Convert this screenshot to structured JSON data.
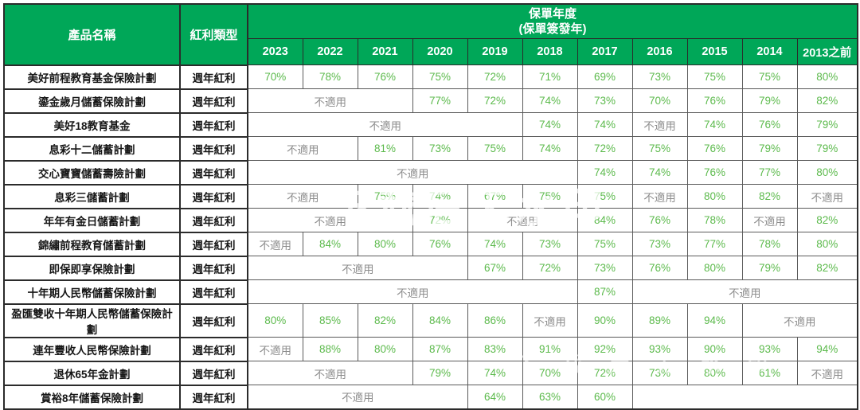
{
  "watermark": {
    "text": "下载后无水印"
  },
  "colors": {
    "header_bg": "#00a758",
    "header_text": "#ffffff",
    "ratio_green": "#5cba4c",
    "na_gray": "#8d8d8d",
    "body_text": "#161616",
    "grid_line": "#5a5a5a",
    "outer_border": "#2b2b2b"
  },
  "chart_data": {
    "type": "table",
    "title": "",
    "header": {
      "product": "產品名稱",
      "dividend_type": "紅利類型",
      "policy_year_line1": "保單年度",
      "policy_year_line2": "(保單簽發年)"
    },
    "years": [
      "2023",
      "2022",
      "2021",
      "2020",
      "2019",
      "2018",
      "2017",
      "2016",
      "2015",
      "2014",
      "2013之前"
    ],
    "na_label": "不適用",
    "rows": [
      {
        "product": "美好前程教育基金保險計劃",
        "dividend_type": "週年紅利",
        "cells": [
          {
            "v": "70%",
            "s": 1
          },
          {
            "v": "78%",
            "s": 1
          },
          {
            "v": "76%",
            "s": 1
          },
          {
            "v": "75%",
            "s": 1
          },
          {
            "v": "72%",
            "s": 1
          },
          {
            "v": "71%",
            "s": 1
          },
          {
            "v": "69%",
            "s": 1
          },
          {
            "v": "73%",
            "s": 1
          },
          {
            "v": "75%",
            "s": 1
          },
          {
            "v": "75%",
            "s": 1
          },
          {
            "v": "80%",
            "s": 1
          }
        ]
      },
      {
        "product": "鎏金歲月儲蓄保險計劃",
        "dividend_type": "週年紅利",
        "cells": [
          {
            "v": "不適用",
            "s": 3
          },
          {
            "v": "77%",
            "s": 1
          },
          {
            "v": "72%",
            "s": 1
          },
          {
            "v": "74%",
            "s": 1
          },
          {
            "v": "73%",
            "s": 1
          },
          {
            "v": "70%",
            "s": 1
          },
          {
            "v": "76%",
            "s": 1
          },
          {
            "v": "79%",
            "s": 1
          },
          {
            "v": "82%",
            "s": 1
          }
        ]
      },
      {
        "product": "美好18教育基金",
        "dividend_type": "週年紅利",
        "cells": [
          {
            "v": "不適用",
            "s": 5
          },
          {
            "v": "74%",
            "s": 1
          },
          {
            "v": "74%",
            "s": 1
          },
          {
            "v": "不適用",
            "s": 1
          },
          {
            "v": "74%",
            "s": 1
          },
          {
            "v": "76%",
            "s": 1
          },
          {
            "v": "79%",
            "s": 1
          }
        ]
      },
      {
        "product": "息彩十二儲蓄計劃",
        "dividend_type": "週年紅利",
        "cells": [
          {
            "v": "不適用",
            "s": 2
          },
          {
            "v": "81%",
            "s": 1
          },
          {
            "v": "73%",
            "s": 1
          },
          {
            "v": "75%",
            "s": 1
          },
          {
            "v": "74%",
            "s": 1
          },
          {
            "v": "72%",
            "s": 1
          },
          {
            "v": "75%",
            "s": 1
          },
          {
            "v": "76%",
            "s": 1
          },
          {
            "v": "79%",
            "s": 1
          },
          {
            "v": "79%",
            "s": 1
          }
        ]
      },
      {
        "product": "交心寶寶儲蓄壽險計劃",
        "dividend_type": "週年紅利",
        "cells": [
          {
            "v": "不適用",
            "s": 6
          },
          {
            "v": "74%",
            "s": 1
          },
          {
            "v": "74%",
            "s": 1
          },
          {
            "v": "76%",
            "s": 1
          },
          {
            "v": "77%",
            "s": 1
          },
          {
            "v": "80%",
            "s": 1
          }
        ]
      },
      {
        "product": "息彩三儲蓄計劃",
        "dividend_type": "週年紅利",
        "cells": [
          {
            "v": "不適用",
            "s": 2
          },
          {
            "v": "75%",
            "s": 1
          },
          {
            "v": "74%",
            "s": 1
          },
          {
            "v": "67%",
            "s": 1
          },
          {
            "v": "75%",
            "s": 1
          },
          {
            "v": "75%",
            "s": 1
          },
          {
            "v": "不適用",
            "s": 1
          },
          {
            "v": "80%",
            "s": 1
          },
          {
            "v": "82%",
            "s": 1
          },
          {
            "v": "不適用",
            "s": 1
          }
        ]
      },
      {
        "product": "年年有金日儲蓄計劃",
        "dividend_type": "週年紅利",
        "cells": [
          {
            "v": "不適用",
            "s": 3
          },
          {
            "v": "72%",
            "s": 1
          },
          {
            "v": "不適用",
            "s": 2
          },
          {
            "v": "84%",
            "s": 1
          },
          {
            "v": "76%",
            "s": 1
          },
          {
            "v": "78%",
            "s": 1
          },
          {
            "v": "不適用",
            "s": 1
          },
          {
            "v": "82%",
            "s": 1
          }
        ]
      },
      {
        "product": "錦繡前程教育儲蓄計劃",
        "dividend_type": "週年紅利",
        "cells": [
          {
            "v": "不適用",
            "s": 1
          },
          {
            "v": "84%",
            "s": 1
          },
          {
            "v": "80%",
            "s": 1
          },
          {
            "v": "76%",
            "s": 1
          },
          {
            "v": "74%",
            "s": 1
          },
          {
            "v": "73%",
            "s": 1
          },
          {
            "v": "75%",
            "s": 1
          },
          {
            "v": "73%",
            "s": 1
          },
          {
            "v": "77%",
            "s": 1
          },
          {
            "v": "78%",
            "s": 1
          },
          {
            "v": "80%",
            "s": 1
          }
        ]
      },
      {
        "product": "即保即享保險計劃",
        "dividend_type": "週年紅利",
        "cells": [
          {
            "v": "不適用",
            "s": 4
          },
          {
            "v": "67%",
            "s": 1
          },
          {
            "v": "72%",
            "s": 1
          },
          {
            "v": "73%",
            "s": 1
          },
          {
            "v": "76%",
            "s": 1
          },
          {
            "v": "80%",
            "s": 1
          },
          {
            "v": "79%",
            "s": 1
          },
          {
            "v": "82%",
            "s": 1
          }
        ]
      },
      {
        "product": "十年期人民幣儲蓄保險計劃",
        "dividend_type": "週年紅利",
        "cells": [
          {
            "v": "不適用",
            "s": 6
          },
          {
            "v": "87%",
            "s": 1
          },
          {
            "v": "不適用",
            "s": 4
          }
        ]
      },
      {
        "product": "盈匯雙收十年期人民幣儲蓄保險計劃",
        "dividend_type": "週年紅利",
        "cells": [
          {
            "v": "80%",
            "s": 1
          },
          {
            "v": "85%",
            "s": 1
          },
          {
            "v": "82%",
            "s": 1
          },
          {
            "v": "84%",
            "s": 1
          },
          {
            "v": "86%",
            "s": 1
          },
          {
            "v": "不適用",
            "s": 1
          },
          {
            "v": "90%",
            "s": 1
          },
          {
            "v": "89%",
            "s": 1
          },
          {
            "v": "94%",
            "s": 1
          },
          {
            "v": "不適用",
            "s": 2
          }
        ]
      },
      {
        "product": "連年豐收人民幣保險計劃",
        "dividend_type": "週年紅利",
        "cells": [
          {
            "v": "不適用",
            "s": 1
          },
          {
            "v": "88%",
            "s": 1
          },
          {
            "v": "80%",
            "s": 1
          },
          {
            "v": "87%",
            "s": 1
          },
          {
            "v": "83%",
            "s": 1
          },
          {
            "v": "91%",
            "s": 1
          },
          {
            "v": "92%",
            "s": 1
          },
          {
            "v": "93%",
            "s": 1
          },
          {
            "v": "90%",
            "s": 1
          },
          {
            "v": "93%",
            "s": 1
          },
          {
            "v": "94%",
            "s": 1
          }
        ]
      },
      {
        "product": "退休65年金計劃",
        "dividend_type": "週年紅利",
        "cells": [
          {
            "v": "不適用",
            "s": 3
          },
          {
            "v": "79%",
            "s": 1
          },
          {
            "v": "74%",
            "s": 1
          },
          {
            "v": "70%",
            "s": 1
          },
          {
            "v": "72%",
            "s": 1
          },
          {
            "v": "73%",
            "s": 1
          },
          {
            "v": "80%",
            "s": 1
          },
          {
            "v": "61%",
            "s": 1
          },
          {
            "v": "不適用",
            "s": 1
          }
        ]
      },
      {
        "product": "賞裕8年儲蓄保險計劃",
        "dividend_type": "週年紅利",
        "cells": [
          {
            "v": "不適用",
            "s": 4
          },
          {
            "v": "64%",
            "s": 1
          },
          {
            "v": "63%",
            "s": 1
          },
          {
            "v": "60%",
            "s": 1
          },
          {
            "v": "",
            "s": 4
          }
        ]
      }
    ]
  }
}
